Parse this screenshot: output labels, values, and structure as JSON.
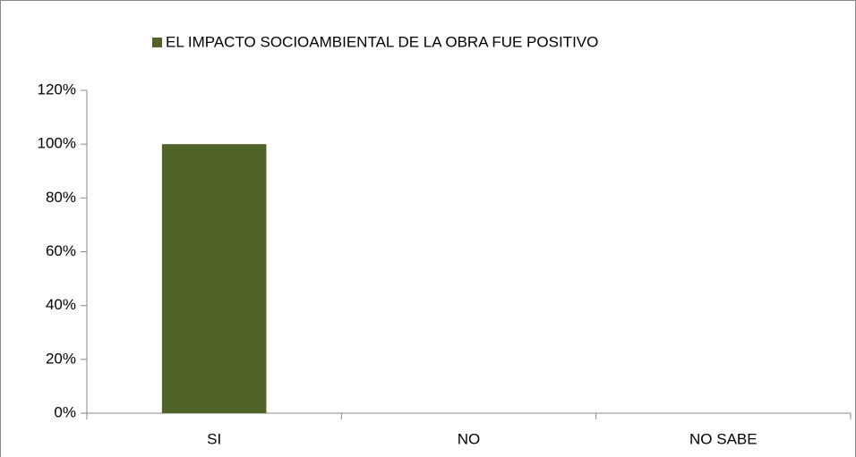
{
  "chart_data": {
    "type": "bar",
    "categories": [
      "SI",
      "NO",
      "NO SABE"
    ],
    "series": [
      {
        "name": "EL IMPACTO SOCIOAMBIENTAL DE LA OBRA FUE POSITIVO",
        "color": "#4f6228",
        "values": [
          100,
          0,
          0
        ]
      }
    ],
    "ylim": [
      0,
      120
    ],
    "yticks": [
      {
        "value": 0,
        "label": "0%"
      },
      {
        "value": 20,
        "label": "20%"
      },
      {
        "value": 40,
        "label": "40%"
      },
      {
        "value": 60,
        "label": "60%"
      },
      {
        "value": 80,
        "label": "80%"
      },
      {
        "value": 100,
        "label": "100%"
      },
      {
        "value": 120,
        "label": "120%"
      }
    ],
    "grid": false,
    "legend": "top"
  }
}
